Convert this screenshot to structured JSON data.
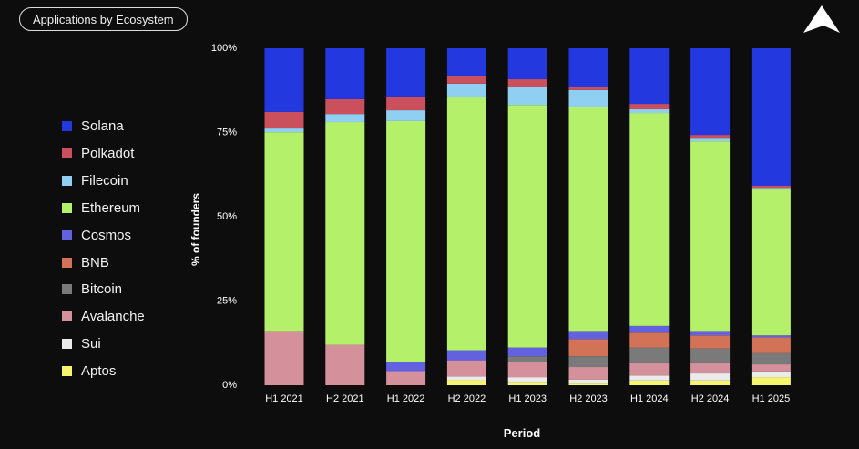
{
  "header": {
    "title": "Applications by Ecosystem"
  },
  "logo": {
    "icon": "mountain-logo"
  },
  "chart_data": {
    "type": "bar",
    "stacked": true,
    "xlabel": "Period",
    "ylabel": "% of founders",
    "ylim": [
      0,
      100
    ],
    "yticks": [
      "0%",
      "25%",
      "50%",
      "75%",
      "100%"
    ],
    "grid": false,
    "legend_position": "left",
    "categories": [
      "H1 2021",
      "H2 2021",
      "H1 2022",
      "H2 2022",
      "H1 2023",
      "H2 2023",
      "H1 2024",
      "H2 2024",
      "H1 2025"
    ],
    "series": [
      {
        "name": "Aptos",
        "color": "#f7f56e",
        "values": [
          0,
          0,
          0,
          1.5,
          1.0,
          0.5,
          1.4,
          1.4,
          2.4
        ]
      },
      {
        "name": "Sui",
        "color": "#ebebeb",
        "values": [
          0,
          0,
          0,
          1.1,
          1.4,
          1.2,
          1.5,
          2.1,
          1.7
        ]
      },
      {
        "name": "Avalanche",
        "color": "#d4919b",
        "values": [
          16.1,
          12.0,
          4.2,
          4.8,
          4.6,
          3.7,
          3.6,
          3.0,
          2.1
        ]
      },
      {
        "name": "Bitcoin",
        "color": "#7a7a7a",
        "values": [
          0,
          0,
          0,
          0,
          1.6,
          3.2,
          4.7,
          4.4,
          3.3
        ]
      },
      {
        "name": "BNB",
        "color": "#d27358",
        "values": [
          0,
          0,
          0,
          0,
          0,
          5.1,
          4.4,
          3.9,
          4.7
        ]
      },
      {
        "name": "Cosmos",
        "color": "#6262e0",
        "values": [
          0,
          0,
          2.8,
          3.0,
          2.6,
          2.4,
          2.0,
          1.3,
          0.6
        ]
      },
      {
        "name": "Ethereum",
        "color": "#b4f06a",
        "values": [
          59.0,
          66.1,
          71.4,
          75.0,
          72.0,
          66.6,
          63.2,
          56.3,
          43.3
        ]
      },
      {
        "name": "Filecoin",
        "color": "#8fd0f2",
        "values": [
          1.1,
          2.4,
          3.2,
          4.1,
          5.2,
          4.9,
          1.1,
          0.8,
          0.5
        ]
      },
      {
        "name": "Polkadot",
        "color": "#c9505c",
        "values": [
          4.9,
          4.4,
          4.1,
          2.4,
          2.4,
          1.0,
          1.6,
          1.1,
          0.6
        ]
      },
      {
        "name": "Solana",
        "color": "#2438e0",
        "values": [
          18.9,
          15.1,
          14.3,
          8.1,
          9.2,
          11.4,
          16.5,
          25.7,
          40.8
        ]
      }
    ],
    "legend_order": [
      "Solana",
      "Polkadot",
      "Filecoin",
      "Ethereum",
      "Cosmos",
      "BNB",
      "Bitcoin",
      "Avalanche",
      "Sui",
      "Aptos"
    ]
  }
}
